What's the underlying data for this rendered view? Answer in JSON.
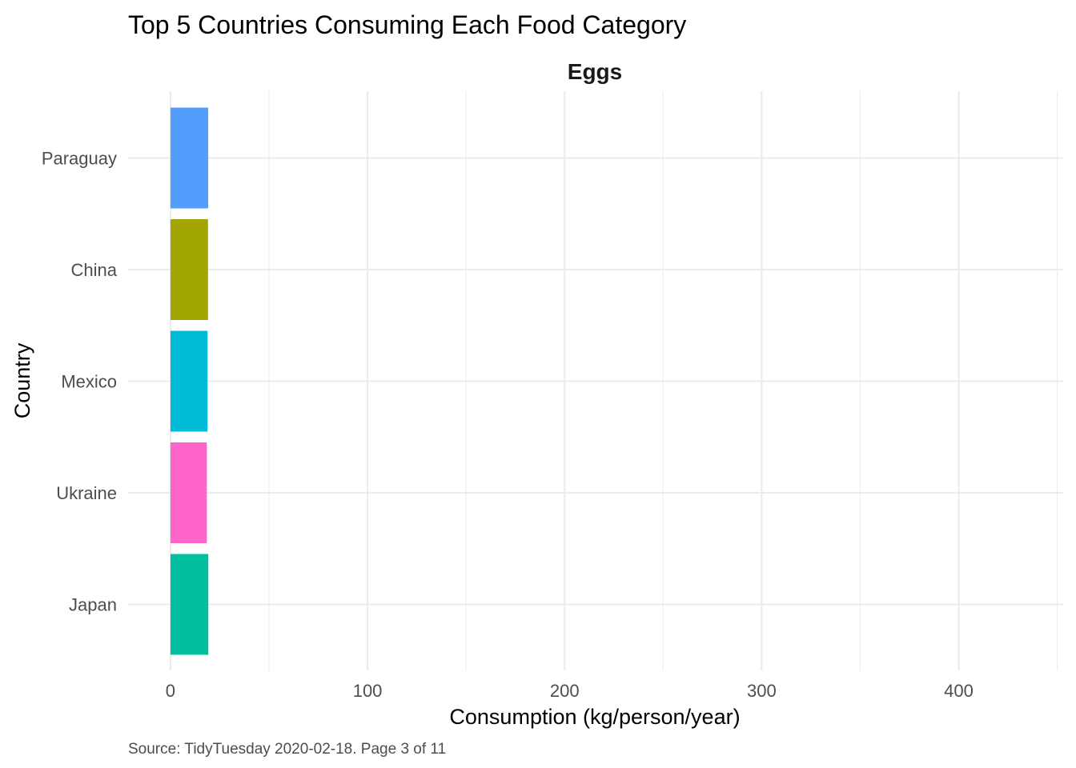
{
  "chart_data": {
    "type": "bar",
    "orientation": "horizontal",
    "title": "Top 5 Countries Consuming Each Food Category",
    "facet": "Eggs",
    "xlabel": "Consumption (kg/person/year)",
    "ylabel": "Country",
    "caption": "Source: TidyTuesday 2020-02-18. Page 3 of 11",
    "xlim": [
      -21.5,
      453
    ],
    "x_ticks": [
      0,
      100,
      200,
      300,
      400
    ],
    "x_minor_ticks": [
      50,
      150,
      250,
      350,
      450
    ],
    "grid": true,
    "legend": "none",
    "categories": [
      "Paraguay",
      "China",
      "Mexico",
      "Ukraine",
      "Japan"
    ],
    "values": [
      19.15,
      19.05,
      18.8,
      18.45,
      19.2
    ],
    "colors": [
      "#529EFF",
      "#A3A500",
      "#00BCD8",
      "#FF65C8",
      "#00C0A0"
    ]
  }
}
